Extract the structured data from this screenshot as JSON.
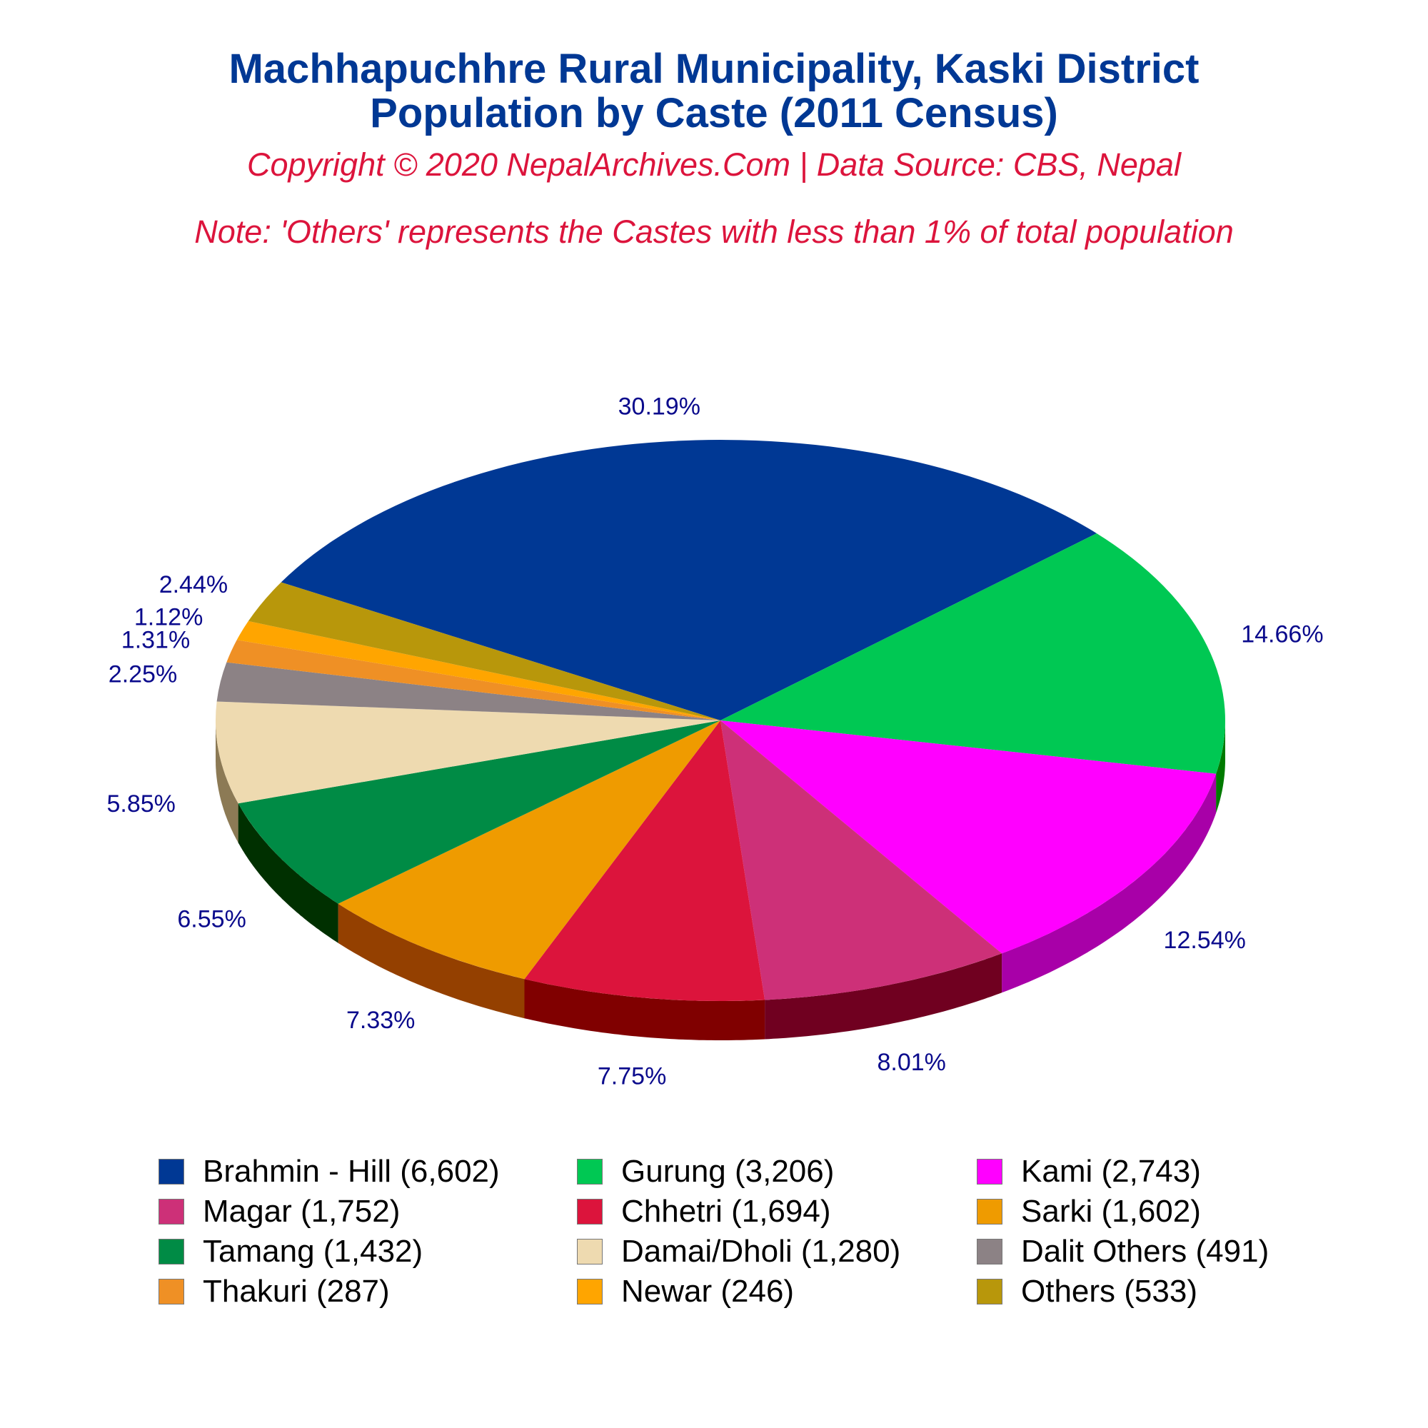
{
  "title_line1": "Machhapuchhre Rural Municipality, Kaski District",
  "title_line2": "Population by Caste (2011 Census)",
  "subtitle": "Copyright © 2020 NepalArchives.Com | Data Source: CBS, Nepal",
  "note": "Note: 'Others' represents the Castes with less than 1% of total population",
  "chart_data": {
    "type": "pie",
    "style": "3d",
    "label_color": "#0a0a8c",
    "legend_placement": "bottom",
    "slices": [
      {
        "label": "Brahmin - Hill (6,602)",
        "value": 6602,
        "percent_label": "30.19%",
        "color": "#003894",
        "side_color": "#002466"
      },
      {
        "label": "Gurung (3,206)",
        "value": 3206,
        "percent_label": "14.66%",
        "color": "#00c853",
        "side_color": "#007a00"
      },
      {
        "label": "Kami (2,743)",
        "value": 2743,
        "percent_label": "12.54%",
        "color": "#ff00ff",
        "side_color": "#a800a8"
      },
      {
        "label": "Magar (1,752)",
        "value": 1752,
        "percent_label": "8.01%",
        "color": "#cd3078",
        "side_color": "#700020"
      },
      {
        "label": "Chhetri (1,694)",
        "value": 1694,
        "percent_label": "7.75%",
        "color": "#dc143c",
        "side_color": "#800000"
      },
      {
        "label": "Sarki (1,602)",
        "value": 1602,
        "percent_label": "7.33%",
        "color": "#ef9b00",
        "side_color": "#944000"
      },
      {
        "label": "Tamang (1,432)",
        "value": 1432,
        "percent_label": "6.55%",
        "color": "#008b45",
        "side_color": "#003000"
      },
      {
        "label": "Damai/Dholi (1,280)",
        "value": 1280,
        "percent_label": "5.85%",
        "color": "#eedab0",
        "side_color": "#8c7a55"
      },
      {
        "label": "Dalit Others (491)",
        "value": 491,
        "percent_label": "2.25%",
        "color": "#8c8285",
        "side_color": "#4a4446"
      },
      {
        "label": "Thakuri (287)",
        "value": 287,
        "percent_label": "1.31%",
        "color": "#ef9025",
        "side_color": "#8a5010"
      },
      {
        "label": "Newar (246)",
        "value": 246,
        "percent_label": "1.12%",
        "color": "#ffa500",
        "side_color": "#9a6000"
      },
      {
        "label": "Others (533)",
        "value": 533,
        "percent_label": "2.44%",
        "color": "#b8970b",
        "side_color": "#6a5505"
      }
    ]
  }
}
